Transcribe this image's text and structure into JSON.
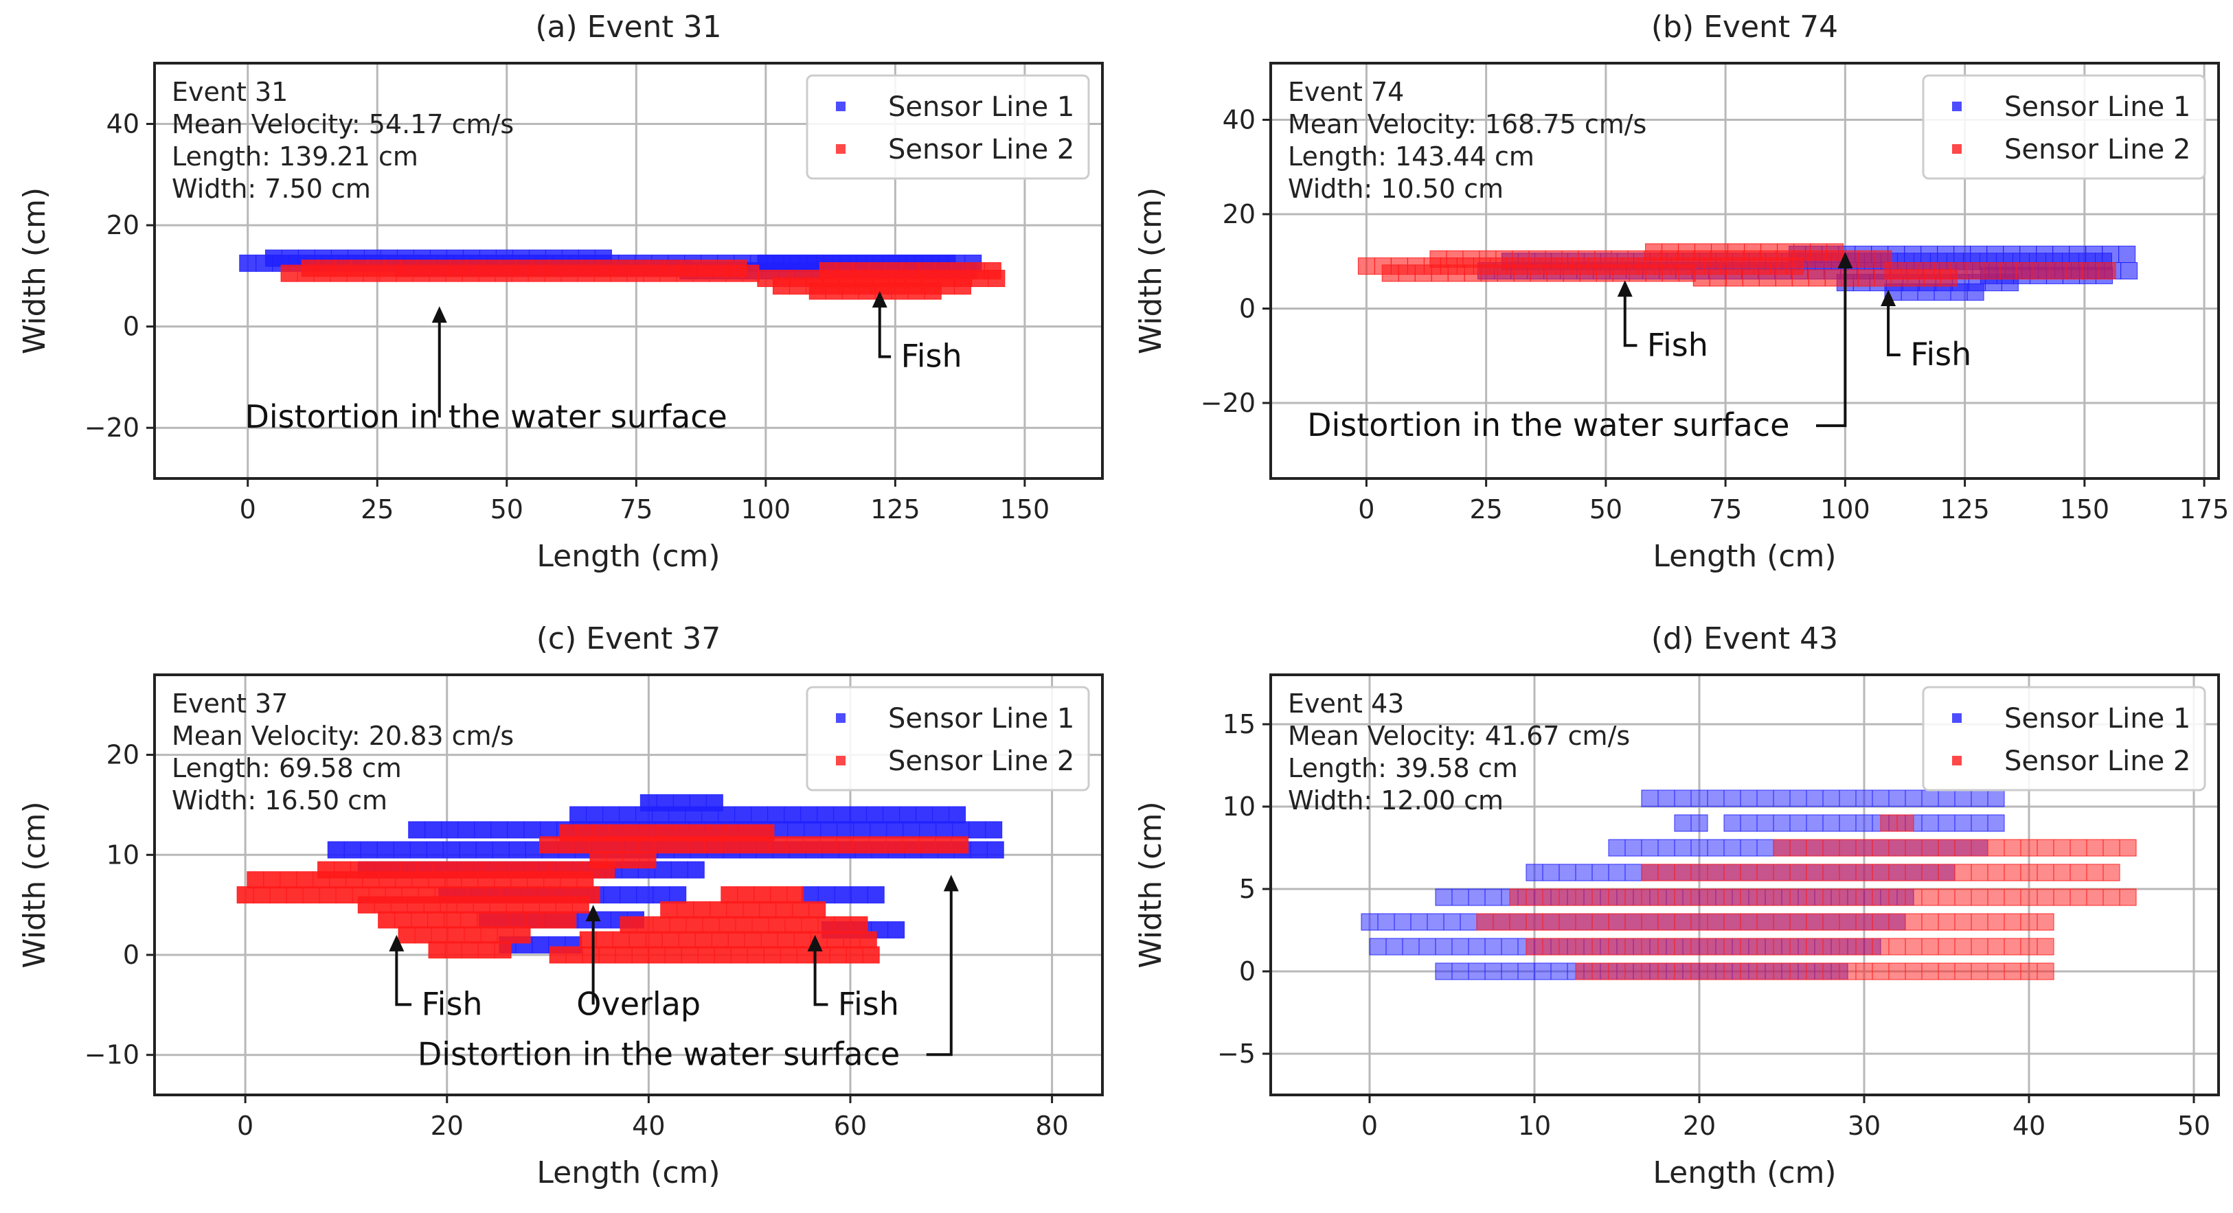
{
  "chart_data": [
    {
      "type": "scatter",
      "title": "(a) Event 31",
      "xlabel": "Length (cm)",
      "ylabel": "Width (cm)",
      "xlim": [
        -18,
        165
      ],
      "ylim": [
        -30,
        52
      ],
      "xticks": [
        0,
        25,
        50,
        75,
        100,
        125,
        150
      ],
      "yticks": [
        -20,
        0,
        20,
        40
      ],
      "grid": true,
      "legend_position": "top-right",
      "info": [
        "Event 31",
        "Mean Velocity: 54.17 cm/s",
        "Length: 139.21 cm",
        "Width: 7.50 cm"
      ],
      "series": [
        {
          "name": "Sensor Line 1",
          "color": "#2020ff",
          "opacity": 0.85,
          "segments": [
            [
              0,
              141,
              12.5
            ],
            [
              5,
              70,
              13.5
            ],
            [
              30,
              85,
              11.5
            ],
            [
              85,
              140,
              11
            ],
            [
              100,
              138,
              12.5
            ]
          ]
        },
        {
          "name": "Sensor Line 2",
          "color": "#ff1a1a",
          "opacity": 0.85,
          "segments": [
            [
              8,
              100,
              10.5
            ],
            [
              12,
              95,
              11.5
            ],
            [
              100,
              147,
              9.5
            ],
            [
              103,
              140,
              8
            ],
            [
              110,
              135,
              7
            ],
            [
              112,
              145,
              11
            ]
          ]
        }
      ],
      "annotations": [
        {
          "text": "Fish",
          "point": [
            122,
            7
          ],
          "label": [
            132,
            -8
          ]
        },
        {
          "text": "Distortion in the water surface",
          "point": [
            37,
            4
          ],
          "label": [
            46,
            -20
          ]
        }
      ]
    },
    {
      "type": "scatter",
      "title": "(b) Event 74",
      "xlabel": "Length (cm)",
      "ylabel": "Width (cm)",
      "xlim": [
        -20,
        178
      ],
      "ylim": [
        -36,
        52
      ],
      "xticks": [
        0,
        25,
        50,
        75,
        100,
        125,
        150,
        175
      ],
      "yticks": [
        -20,
        0,
        20,
        40
      ],
      "grid": true,
      "legend_position": "top-right",
      "info": [
        "Event 74",
        "Mean Velocity: 168.75 cm/s",
        "Length: 143.44 cm",
        "Width: 10.50 cm"
      ],
      "series": [
        {
          "name": "Sensor Line 1",
          "color": "#2020ff",
          "opacity": 0.6,
          "segments": [
            [
              25,
              160,
              8
            ],
            [
              30,
              155,
              10
            ],
            [
              90,
              160,
              11.5
            ],
            [
              100,
              135,
              5.5
            ],
            [
              110,
              130,
              3.5
            ],
            [
              130,
              155,
              7
            ]
          ]
        },
        {
          "name": "Sensor Line 2",
          "color": "#ff1a1a",
          "opacity": 0.6,
          "segments": [
            [
              0,
              90,
              9
            ],
            [
              5,
              70,
              7.5
            ],
            [
              15,
              110,
              10.5
            ],
            [
              60,
              100,
              12
            ],
            [
              70,
              125,
              6.5
            ],
            [
              110,
              155,
              8
            ]
          ]
        }
      ],
      "annotations": [
        {
          "text": "Fish",
          "point": [
            54,
            6
          ],
          "label": [
            65,
            -10
          ]
        },
        {
          "text": "Fish",
          "point": [
            109,
            4
          ],
          "label": [
            120,
            -12
          ]
        },
        {
          "text": "Distortion in the water surface",
          "point": [
            100,
            12
          ],
          "label": [
            38,
            -27
          ]
        }
      ]
    },
    {
      "type": "scatter",
      "title": "(c) Event 37",
      "xlabel": "Length (cm)",
      "ylabel": "Width (cm)",
      "xlim": [
        -9,
        85
      ],
      "ylim": [
        -14,
        28
      ],
      "xticks": [
        0,
        20,
        40,
        60,
        80
      ],
      "yticks": [
        -10,
        0,
        10,
        20
      ],
      "grid": true,
      "legend_position": "top-right",
      "info": [
        "Event 37",
        "Mean Velocity: 20.83 cm/s",
        "Length: 69.58 cm",
        "Width: 16.50 cm"
      ],
      "series": [
        {
          "name": "Sensor Line 1",
          "color": "#2020ff",
          "opacity": 0.9,
          "segments": [
            [
              17,
              75,
              12.5
            ],
            [
              9,
              76,
              10.5
            ],
            [
              33,
              72,
              14
            ],
            [
              40,
              47,
              15.2
            ],
            [
              12,
              46,
              8.5
            ],
            [
              20,
              44,
              6
            ],
            [
              24,
              40,
              3.5
            ],
            [
              26,
              34,
              1
            ],
            [
              56,
              63,
              6
            ],
            [
              58,
              65,
              2.5
            ]
          ]
        },
        {
          "name": "Sensor Line 2",
          "color": "#ff1a1a",
          "opacity": 0.9,
          "segments": [
            [
              0,
              35,
              6
            ],
            [
              1,
              34,
              7.5
            ],
            [
              8,
              36,
              8.5
            ],
            [
              12,
              34,
              5
            ],
            [
              14,
              32,
              3.5
            ],
            [
              16,
              28,
              2
            ],
            [
              19,
              26,
              0.5
            ],
            [
              30,
              72,
              11
            ],
            [
              32,
              52,
              12.2
            ],
            [
              35,
              40,
              9.5
            ],
            [
              31,
              63,
              0
            ],
            [
              34,
              62,
              1.5
            ],
            [
              38,
              62,
              3
            ],
            [
              42,
              58,
              4.5
            ],
            [
              48,
              56,
              6
            ]
          ]
        }
      ],
      "annotations": [
        {
          "text": "Fish",
          "point": [
            15,
            2
          ],
          "label": [
            20.5,
            -6
          ]
        },
        {
          "text": "Overlap",
          "point": [
            34.5,
            5
          ],
          "label": [
            39,
            -6
          ]
        },
        {
          "text": "Fish",
          "point": [
            56.5,
            2
          ],
          "label": [
            61.8,
            -6
          ]
        },
        {
          "text": "Distortion in the water surface",
          "point": [
            70,
            8
          ],
          "label": [
            41,
            -11
          ]
        }
      ]
    },
    {
      "type": "scatter",
      "title": "(d) Event 43",
      "xlabel": "Length (cm)",
      "ylabel": "Width (cm)",
      "xlim": [
        -6,
        51.5
      ],
      "ylim": [
        -7.5,
        18
      ],
      "xticks": [
        0,
        10,
        20,
        30,
        40,
        50
      ],
      "yticks": [
        -5,
        0,
        5,
        10,
        15
      ],
      "grid": true,
      "legend_position": "top-right",
      "info": [
        "Event 43",
        "Mean Velocity: 41.67 cm/s",
        "Length: 39.58 cm",
        "Width: 12.00 cm"
      ],
      "series": [
        {
          "name": "Sensor Line 1",
          "color": "#2020ff",
          "opacity": 0.5,
          "segments": [
            [
              17,
              18,
              10.5
            ],
            [
              19,
              38,
              10.5
            ],
            [
              19,
              20.5,
              9
            ],
            [
              22,
              38,
              9
            ],
            [
              15,
              37,
              7.5
            ],
            [
              10,
              35,
              6
            ],
            [
              4.5,
              33,
              4.5
            ],
            [
              0,
              32,
              3
            ],
            [
              0.5,
              31,
              1.5
            ],
            [
              4.5,
              29,
              0
            ]
          ]
        },
        {
          "name": "Sensor Line 2",
          "color": "#ff1a1a",
          "opacity": 0.5,
          "segments": [
            [
              31.5,
              32.5,
              9
            ],
            [
              25,
              46,
              7.5
            ],
            [
              17,
              45,
              6
            ],
            [
              9,
              46.5,
              4.5
            ],
            [
              7,
              41.5,
              3
            ],
            [
              10,
              41,
              1.5
            ],
            [
              13,
              41,
              0
            ]
          ]
        }
      ],
      "annotations": []
    }
  ]
}
